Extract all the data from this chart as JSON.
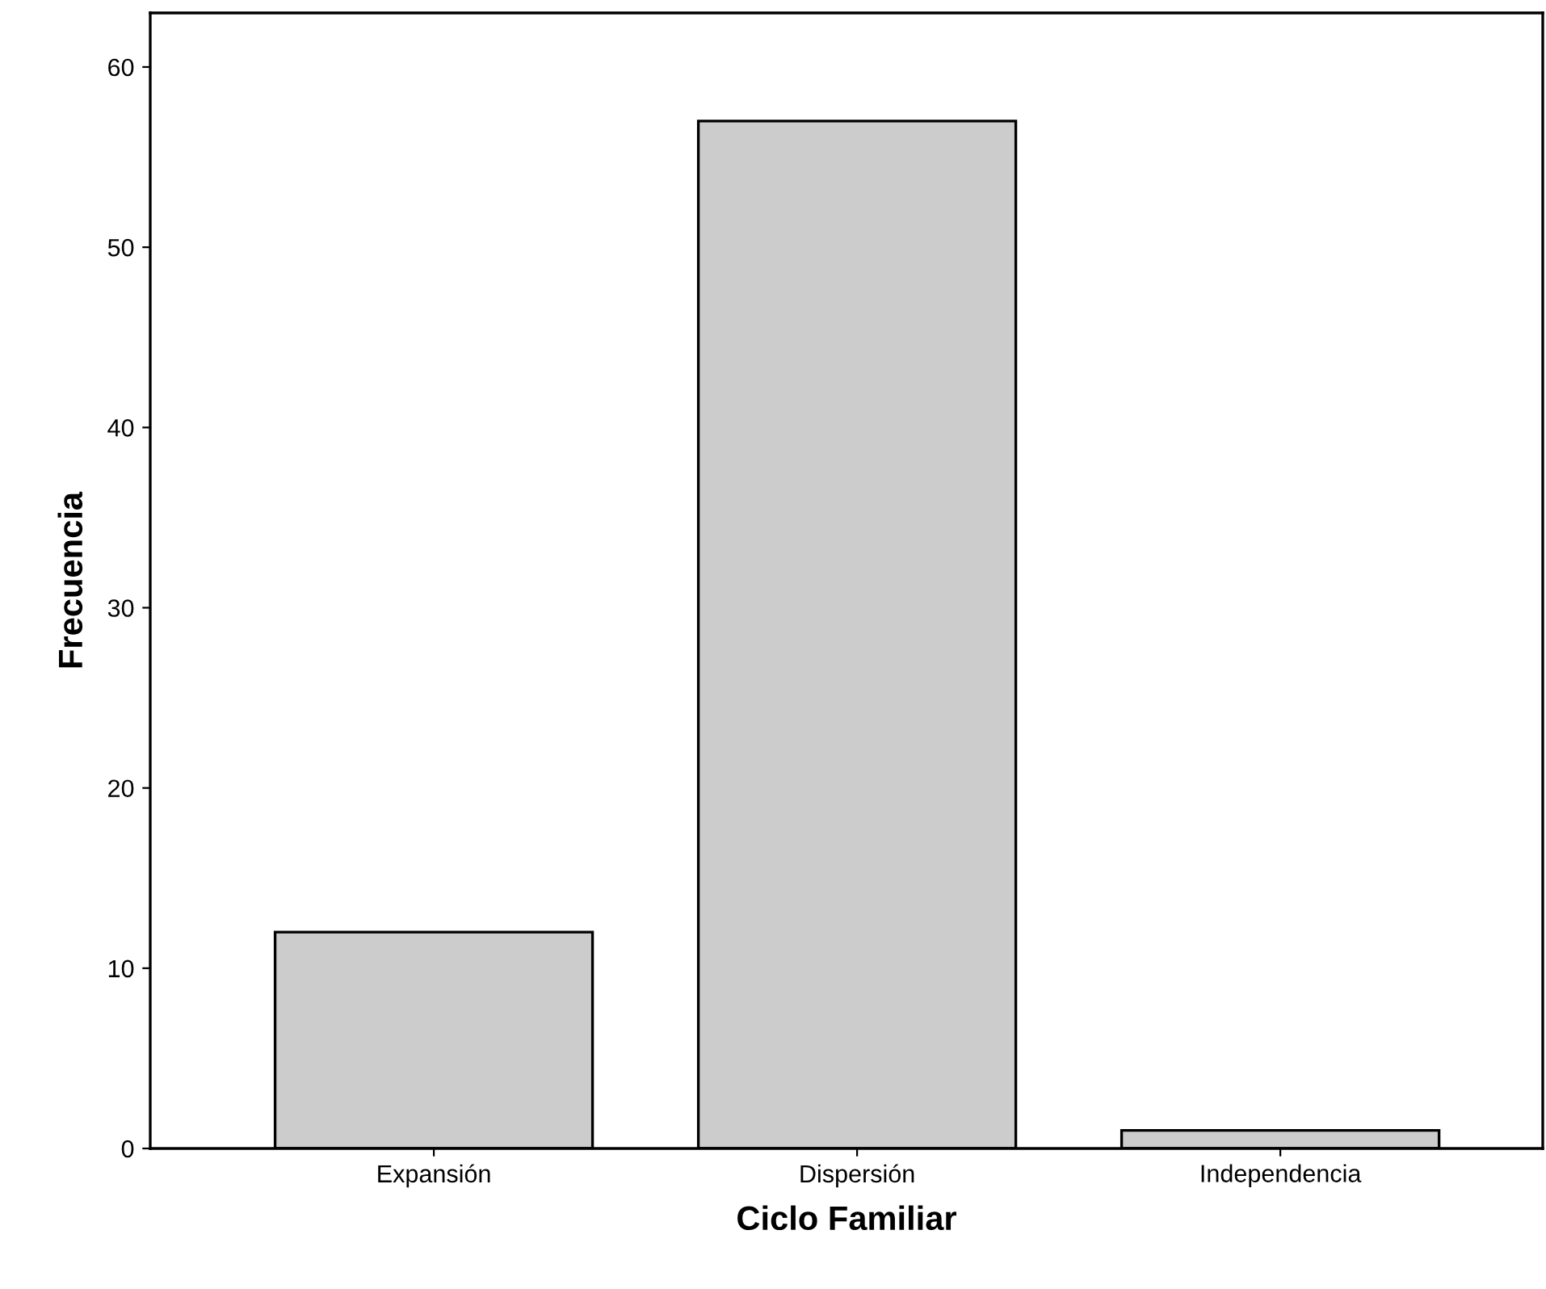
{
  "chart_data": {
    "type": "bar",
    "xlabel": "Ciclo Familiar",
    "ylabel": "Frecuencia",
    "categories": [
      "Expansión",
      "Dispersión",
      "Independencia"
    ],
    "values": [
      12,
      57,
      1
    ],
    "color": "#cccccc",
    "ylim": [
      0,
      63
    ],
    "yticks": [
      0,
      10,
      20,
      30,
      40,
      50,
      60
    ],
    "grid": false
  }
}
